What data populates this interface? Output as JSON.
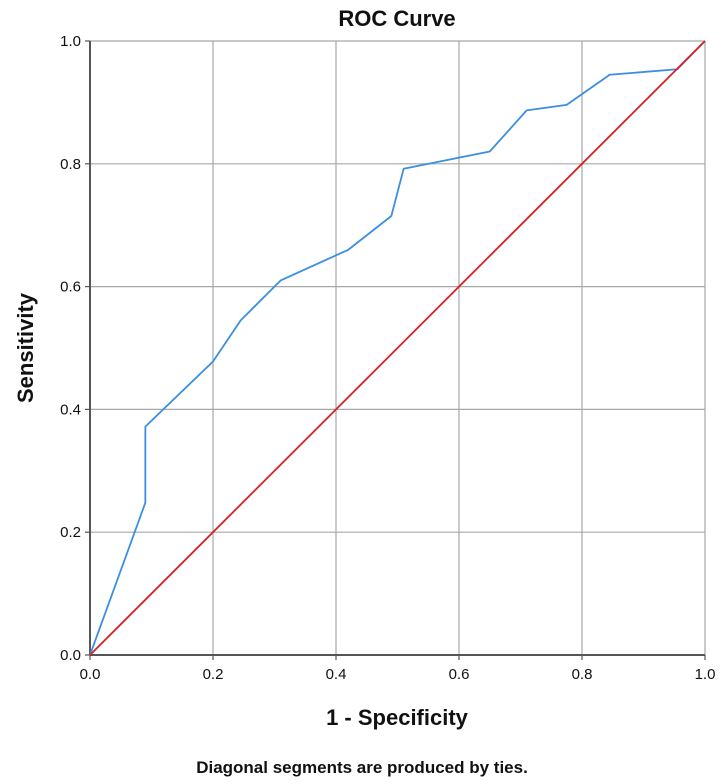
{
  "chart_data": {
    "type": "line",
    "title": "ROC Curve",
    "xlabel": "1 - Specificity",
    "ylabel": "Sensitivity",
    "xlim": [
      0,
      1
    ],
    "ylim": [
      0,
      1
    ],
    "x_ticks": [
      "0.0",
      "0.2",
      "0.4",
      "0.6",
      "0.8",
      "1.0"
    ],
    "y_ticks": [
      "0.0",
      "0.2",
      "0.4",
      "0.6",
      "0.8",
      "1.0"
    ],
    "grid": true,
    "footnote": "Diagonal segments are produced by ties.",
    "series": [
      {
        "color": "#3b8ee0",
        "x": [
          0.0,
          0.09,
          0.09,
          0.2,
          0.245,
          0.31,
          0.42,
          0.49,
          0.51,
          0.65,
          0.71,
          0.775,
          0.845,
          0.955,
          1.0
        ],
        "y": [
          0.0,
          0.248,
          0.372,
          0.478,
          0.545,
          0.61,
          0.66,
          0.715,
          0.792,
          0.82,
          0.887,
          0.896,
          0.945,
          0.954,
          1.0
        ]
      },
      {
        "color": "#d82020",
        "x": [
          0.0,
          1.0
        ],
        "y": [
          0.0,
          1.0
        ]
      }
    ]
  }
}
